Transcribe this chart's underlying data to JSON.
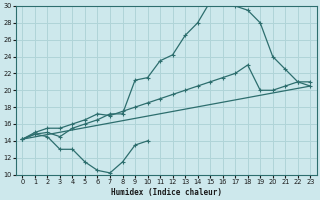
{
  "xlabel": "Humidex (Indice chaleur)",
  "ylabel": "",
  "xlim": [
    -0.5,
    23.5
  ],
  "ylim": [
    10,
    30
  ],
  "xticks": [
    0,
    1,
    2,
    3,
    4,
    5,
    6,
    7,
    8,
    9,
    10,
    11,
    12,
    13,
    14,
    15,
    16,
    17,
    18,
    19,
    20,
    21,
    22,
    23
  ],
  "yticks": [
    10,
    12,
    14,
    16,
    18,
    20,
    22,
    24,
    26,
    28,
    30
  ],
  "bg_color": "#cde8ec",
  "line_color": "#2d6e6e",
  "grid_color": "#b0d4d8",
  "line1_x": [
    0,
    1,
    2,
    3,
    4,
    5,
    6,
    7,
    8,
    9,
    10,
    11,
    12,
    13,
    14,
    15,
    16,
    17,
    18,
    19,
    20,
    21,
    22,
    23
  ],
  "line1_y": [
    14.2,
    14.8,
    15.0,
    14.5,
    15.5,
    16.0,
    16.5,
    17.2,
    17.2,
    21.2,
    21.5,
    23.5,
    24.2,
    26.5,
    28.0,
    30.5,
    30.5,
    30.0,
    29.5,
    28.0,
    24.0,
    22.5,
    21.0,
    20.5
  ],
  "line2_x": [
    0,
    23
  ],
  "line2_y": [
    14.2,
    20.5
  ],
  "line3_x": [
    0,
    1,
    2,
    3,
    4,
    5,
    6,
    7,
    8,
    9,
    10,
    11,
    12,
    13,
    14,
    15,
    16,
    17,
    18,
    19,
    20,
    21,
    22,
    23
  ],
  "line3_y": [
    14.2,
    15.0,
    15.5,
    15.5,
    16.0,
    16.5,
    17.2,
    17.0,
    17.5,
    18.0,
    18.5,
    19.0,
    19.5,
    20.0,
    20.5,
    21.0,
    21.5,
    22.0,
    23.0,
    20.0,
    20.0,
    20.5,
    21.0,
    21.0
  ],
  "line4_x": [
    0,
    1,
    2,
    3,
    4,
    5,
    6,
    7,
    8,
    9,
    10
  ],
  "line4_y": [
    14.2,
    14.8,
    14.5,
    13.0,
    13.0,
    11.5,
    10.5,
    10.2,
    11.5,
    13.5,
    14.0
  ]
}
